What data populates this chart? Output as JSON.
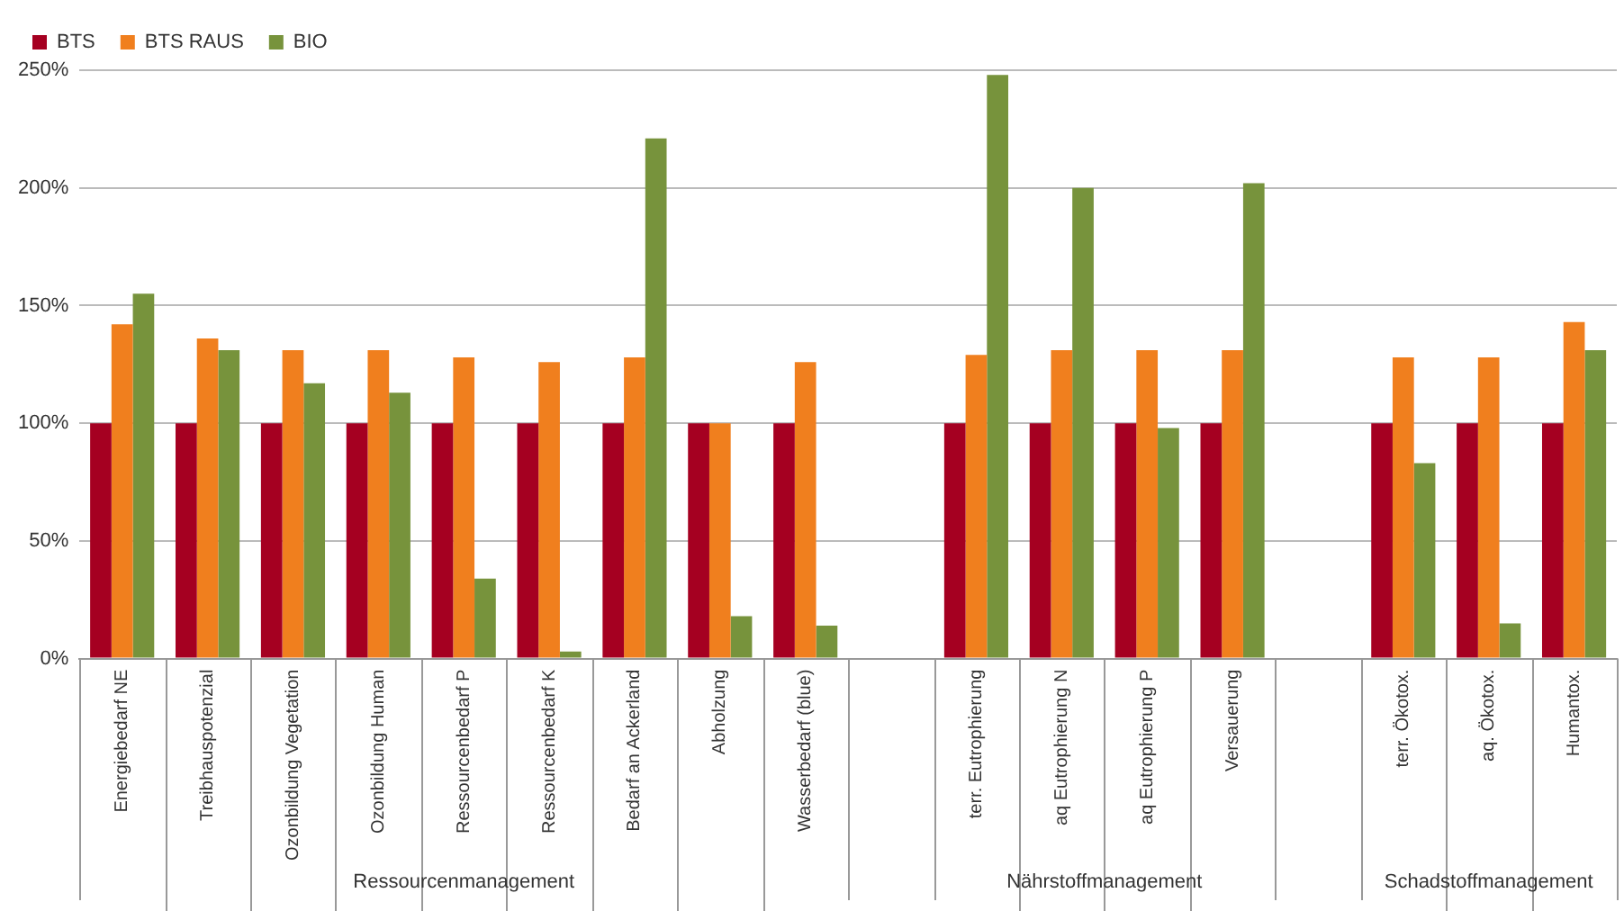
{
  "chart_data": {
    "type": "bar",
    "categories": [
      "Energiebedarf NE",
      "Treibhauspotenzial",
      "Ozonbildung Vegetation",
      "Ozonbildung Human",
      "Ressourcenbedarf P",
      "Ressourcenbedarf K",
      "Bedarf an Ackerland",
      "Abholzung",
      "Wasserbedarf (blue)",
      null,
      "terr. Eutrophierung",
      "aq Eutrophierung N",
      "aq Eutrophierung P",
      "Versauerung",
      null,
      "terr. Ökotox.",
      "aq. Ökotox.",
      "Humantox."
    ],
    "series": [
      {
        "name": "BTS",
        "color": "#a50021",
        "values": [
          100,
          100,
          100,
          100,
          100,
          100,
          100,
          100,
          100,
          null,
          100,
          100,
          100,
          100,
          null,
          100,
          100,
          100
        ]
      },
      {
        "name": "BTS RAUS",
        "color": "#f07f1e",
        "values": [
          142,
          136,
          131,
          131,
          128,
          126,
          128,
          100,
          126,
          null,
          129,
          131,
          131,
          131,
          null,
          128,
          128,
          143
        ]
      },
      {
        "name": "BIO",
        "color": "#77933c",
        "values": [
          155,
          131,
          117,
          113,
          34,
          3,
          221,
          18,
          14,
          null,
          248,
          200,
          98,
          202,
          null,
          83,
          15,
          131
        ]
      }
    ],
    "ylim": [
      0,
      250
    ],
    "yticks": [
      {
        "value": 0,
        "label": "0%"
      },
      {
        "value": 50,
        "label": "50%"
      },
      {
        "value": 100,
        "label": "100%"
      },
      {
        "value": 150,
        "label": "150%"
      },
      {
        "value": 200,
        "label": "200%"
      },
      {
        "value": 250,
        "label": "250%"
      }
    ],
    "grid": "y",
    "legend": "top left",
    "annotations": [
      "Ressourcenmanagement",
      "Nährstoffmanagement",
      "Schadstoffmanagement"
    ]
  }
}
